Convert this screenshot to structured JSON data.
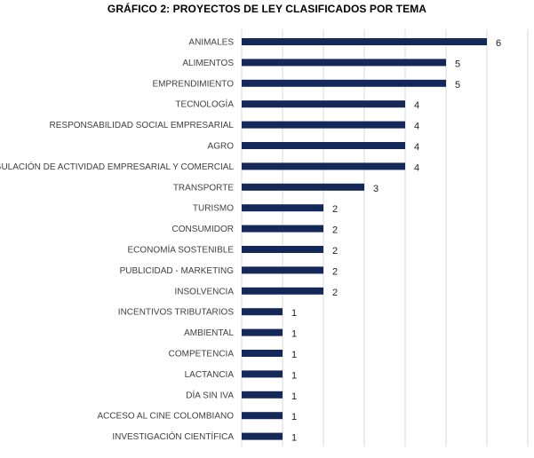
{
  "chart_data": {
    "type": "bar",
    "orientation": "horizontal",
    "title": "GRÁFICO 2: PROYECTOS DE LEY CLASIFICADOS POR TEMA",
    "xlabel": "",
    "ylabel": "",
    "grid": true,
    "legend": "none",
    "xlim": [
      0,
      7
    ],
    "bar_color": "#14285a",
    "categories": [
      "ANIMALES",
      "ALIMENTOS",
      "EMPRENDIMIENTO",
      "TECNOLOGÍA",
      "RESPONSABILIDAD SOCIAL EMPRESARIAL",
      "AGRO",
      "REGULACIÓN DE ACTIVIDAD EMPRESARIAL Y COMERCIAL",
      "TRANSPORTE",
      "TURISMO",
      "CONSUMIDOR",
      "ECONOMÍA SOSTENIBLE",
      "PUBLICIDAD - MARKETING",
      "INSOLVENCIA",
      "INCENTIVOS TRIBUTARIOS",
      "AMBIENTAL",
      "COMPETENCIA",
      "LACTANCIA",
      "DÍA SIN IVA",
      "ACCESO AL CINE COLOMBIANO",
      "INVESTIGACIÓN CIENTÍFICA"
    ],
    "values": [
      6,
      5,
      5,
      4,
      4,
      4,
      4,
      3,
      2,
      2,
      2,
      2,
      2,
      1,
      1,
      1,
      1,
      1,
      1,
      1
    ],
    "data_labels": true
  }
}
